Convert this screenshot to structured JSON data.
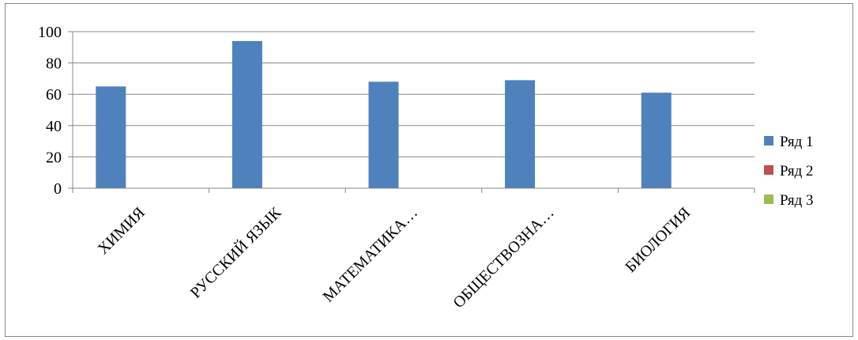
{
  "chart_data": {
    "type": "bar",
    "categories": [
      "ХИМИЯ",
      "РУССКИЙ ЯЗЫК",
      "МАТЕМАТИКА…",
      "ОБЩЕСТВОЗНА…",
      "БИОЛОГИЯ"
    ],
    "series": [
      {
        "name": "Ряд 1",
        "values": [
          65,
          94,
          68,
          69,
          61
        ],
        "color": "#4f81bd"
      },
      {
        "name": "Ряд 2",
        "values": [
          null,
          null,
          null,
          null,
          null
        ],
        "color": "#c0504d"
      },
      {
        "name": "Ряд 3",
        "values": [
          null,
          null,
          null,
          null,
          null
        ],
        "color": "#9bbb59"
      }
    ],
    "ylim": [
      0,
      100
    ],
    "yticks": [
      0,
      20,
      40,
      60,
      80,
      100
    ],
    "grid": true,
    "legend_position": "right"
  }
}
